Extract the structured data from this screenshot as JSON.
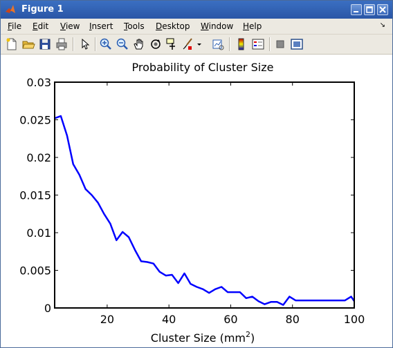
{
  "window": {
    "title": "Figure 1",
    "buttons": [
      "minimize",
      "maximize",
      "close"
    ]
  },
  "menu": {
    "items": [
      {
        "label": "File",
        "u": "F",
        "rest": "ile"
      },
      {
        "label": "Edit",
        "u": "E",
        "rest": "dit"
      },
      {
        "label": "View",
        "u": "V",
        "rest": "iew"
      },
      {
        "label": "Insert",
        "u": "I",
        "rest": "nsert"
      },
      {
        "label": "Tools",
        "u": "T",
        "rest": "ools"
      },
      {
        "label": "Desktop",
        "u": "D",
        "rest": "esktop"
      },
      {
        "label": "Window",
        "u": "W",
        "rest": "indow"
      },
      {
        "label": "Help",
        "u": "H",
        "rest": "elp"
      }
    ],
    "corner_glyph": "↘"
  },
  "toolbar": {
    "icons": [
      "new-figure-icon",
      "open-file-icon",
      "save-icon",
      "print-icon",
      "edit-plot-arrow-icon",
      "zoom-in-icon",
      "zoom-out-icon",
      "pan-hand-icon",
      "rotate-3d-icon",
      "data-cursor-icon",
      "brush-icon",
      "brush-dropdown-icon",
      "link-plot-icon",
      "colorbar-icon",
      "legend-icon",
      "hide-plot-tools-icon",
      "show-plot-tools-icon"
    ]
  },
  "chart_data": {
    "type": "line",
    "title": "Probability of Cluster Size",
    "xlabel": "Cluster Size (mm",
    "xlabel_superscript": "2",
    "xlabel_suffix": ")",
    "ylabel": "",
    "xlim": [
      3,
      100
    ],
    "ylim": [
      0,
      0.03
    ],
    "xticks": [
      20,
      40,
      60,
      80,
      100
    ],
    "yticks": [
      0,
      0.005,
      0.01,
      0.015,
      0.02,
      0.025,
      0.03
    ],
    "yticklabels": [
      "0",
      "0.005",
      "0.01",
      "0.015",
      "0.02",
      "0.025",
      "0.03"
    ],
    "grid": false,
    "line_color": "#0000ff",
    "series": [
      {
        "x": [
          3,
          5,
          7,
          9,
          11,
          13,
          15,
          17,
          19,
          21,
          23,
          25,
          27,
          29,
          31,
          33,
          35,
          37,
          39,
          41,
          43,
          45,
          47,
          49,
          51,
          53,
          55,
          57,
          59,
          61,
          63,
          65,
          67,
          69,
          71,
          73,
          75,
          77,
          79,
          81,
          83,
          85,
          87,
          89,
          91,
          93,
          95,
          97,
          99,
          100
        ],
        "y": [
          0.0252,
          0.0255,
          0.0229,
          0.0191,
          0.0177,
          0.0158,
          0.015,
          0.014,
          0.0125,
          0.0112,
          0.009,
          0.0101,
          0.0094,
          0.0077,
          0.0062,
          0.0061,
          0.0059,
          0.0048,
          0.0043,
          0.0044,
          0.0033,
          0.0046,
          0.0032,
          0.0028,
          0.0025,
          0.002,
          0.0025,
          0.0028,
          0.0021,
          0.0021,
          0.0021,
          0.0013,
          0.0015,
          0.0009,
          0.0005,
          0.0008,
          0.0008,
          0.0004,
          0.0015,
          0.001,
          0.001,
          0.001,
          0.001,
          0.001,
          0.001,
          0.001,
          0.001,
          0.001,
          0.0015,
          0.0009
        ]
      }
    ]
  }
}
